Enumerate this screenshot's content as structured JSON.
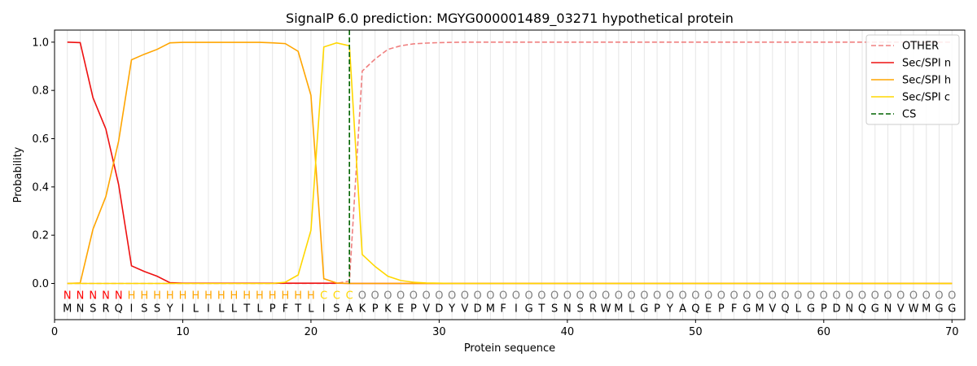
{
  "chart_data": {
    "type": "line",
    "title": "SignalP 6.0 prediction: MGYG000001489_03271 hypothetical protein",
    "xlabel": "Protein sequence",
    "ylabel": "Probability",
    "xlim": [
      0,
      71
    ],
    "ylim": [
      -0.15,
      1.05
    ],
    "xticks": [
      0,
      10,
      20,
      30,
      40,
      50,
      60,
      70
    ],
    "yticks": [
      "0.0",
      "0.2",
      "0.4",
      "0.6",
      "0.8",
      "1.0"
    ],
    "legend_position": "top-right",
    "sequence": [
      "M",
      "N",
      "S",
      "R",
      "Q",
      "I",
      "S",
      "S",
      "Y",
      "I",
      "L",
      "I",
      "L",
      "L",
      "T",
      "L",
      "P",
      "F",
      "T",
      "L",
      "I",
      "S",
      "A",
      "K",
      "P",
      "K",
      "E",
      "P",
      "V",
      "D",
      "Y",
      "V",
      "D",
      "M",
      "F",
      "I",
      "G",
      "T",
      "S",
      "N",
      "S",
      "R",
      "W",
      "M",
      "L",
      "G",
      "P",
      "Y",
      "A",
      "Q",
      "E",
      "P",
      "F",
      "G",
      "M",
      "V",
      "Q",
      "L",
      "G",
      "P",
      "D",
      "N",
      "Q",
      "G",
      "N",
      "V",
      "W",
      "M",
      "G",
      "G"
    ],
    "labels": [
      "N",
      "N",
      "N",
      "N",
      "N",
      "H",
      "H",
      "H",
      "H",
      "H",
      "H",
      "H",
      "H",
      "H",
      "H",
      "H",
      "H",
      "H",
      "H",
      "H",
      "C",
      "C",
      "C",
      "O",
      "O",
      "O",
      "O",
      "O",
      "O",
      "O",
      "O",
      "O",
      "O",
      "O",
      "O",
      "O",
      "O",
      "O",
      "O",
      "O",
      "O",
      "O",
      "O",
      "O",
      "O",
      "O",
      "O",
      "O",
      "O",
      "O",
      "O",
      "O",
      "O",
      "O",
      "O",
      "O",
      "O",
      "O",
      "O",
      "O",
      "O",
      "O",
      "O",
      "O",
      "O",
      "O",
      "O",
      "O",
      "O",
      "O"
    ],
    "label_colors": {
      "N": "#ff0000",
      "H": "#ffa500",
      "C": "#ffd700",
      "O": "#808080"
    },
    "cs_position": 23,
    "series": [
      {
        "name": "OTHER",
        "color": "#f08080",
        "dash": true,
        "values": [
          0,
          0,
          0,
          0,
          0,
          0,
          0,
          0,
          0,
          0,
          0,
          0,
          0,
          0,
          0,
          0,
          0,
          0,
          0,
          0,
          0,
          0,
          0.01,
          0.88,
          0.93,
          0.97,
          0.985,
          0.993,
          0.996,
          0.998,
          0.999,
          1,
          1,
          1,
          1,
          1,
          1,
          1,
          1,
          1,
          1,
          1,
          1,
          1,
          1,
          1,
          1,
          1,
          1,
          1,
          1,
          1,
          1,
          1,
          1,
          1,
          1,
          1,
          1,
          1,
          1,
          1,
          1,
          1,
          1,
          1,
          1,
          1,
          1,
          1
        ]
      },
      {
        "name": "Sec/SPI n",
        "color": "#ee1111",
        "dash": false,
        "values": [
          1,
          0.998,
          0.77,
          0.64,
          0.41,
          0.073,
          0.05,
          0.03,
          0.003,
          0.001,
          0.001,
          0.001,
          0.001,
          0.001,
          0.001,
          0.001,
          0.001,
          0.001,
          0.001,
          0.001,
          0.001,
          0.001,
          0,
          0,
          0,
          0,
          0,
          0,
          0,
          0,
          0,
          0,
          0,
          0,
          0,
          0,
          0,
          0,
          0,
          0,
          0,
          0,
          0,
          0,
          0,
          0,
          0,
          0,
          0,
          0,
          0,
          0,
          0,
          0,
          0,
          0,
          0,
          0,
          0,
          0,
          0,
          0,
          0,
          0,
          0,
          0,
          0,
          0,
          0,
          0
        ]
      },
      {
        "name": "Sec/SPI h",
        "color": "#ffa500",
        "dash": false,
        "values": [
          0,
          0.002,
          0.225,
          0.36,
          0.59,
          0.927,
          0.95,
          0.97,
          0.997,
          0.999,
          0.999,
          0.999,
          0.999,
          0.999,
          0.999,
          0.999,
          0.997,
          0.994,
          0.962,
          0.78,
          0.02,
          0.002,
          0,
          0,
          0,
          0,
          0,
          0,
          0,
          0,
          0,
          0,
          0,
          0,
          0,
          0,
          0,
          0,
          0,
          0,
          0,
          0,
          0,
          0,
          0,
          0,
          0,
          0,
          0,
          0,
          0,
          0,
          0,
          0,
          0,
          0,
          0,
          0,
          0,
          0,
          0,
          0,
          0,
          0,
          0,
          0,
          0,
          0,
          0,
          0
        ]
      },
      {
        "name": "Sec/SPI c",
        "color": "#ffd700",
        "dash": false,
        "values": [
          0,
          0,
          0,
          0,
          0,
          0,
          0,
          0,
          0,
          0,
          0,
          0,
          0,
          0,
          0,
          0,
          0,
          0.005,
          0.035,
          0.22,
          0.98,
          0.997,
          0.985,
          0.12,
          0.07,
          0.03,
          0.012,
          0.005,
          0.002,
          0.001,
          0,
          0,
          0,
          0,
          0,
          0,
          0,
          0,
          0,
          0,
          0,
          0,
          0,
          0,
          0,
          0,
          0,
          0,
          0,
          0,
          0,
          0,
          0,
          0,
          0,
          0,
          0,
          0,
          0,
          0,
          0,
          0,
          0,
          0,
          0,
          0,
          0,
          0,
          0,
          0
        ]
      }
    ],
    "cs_legend": {
      "name": "CS",
      "color": "#006400"
    }
  }
}
